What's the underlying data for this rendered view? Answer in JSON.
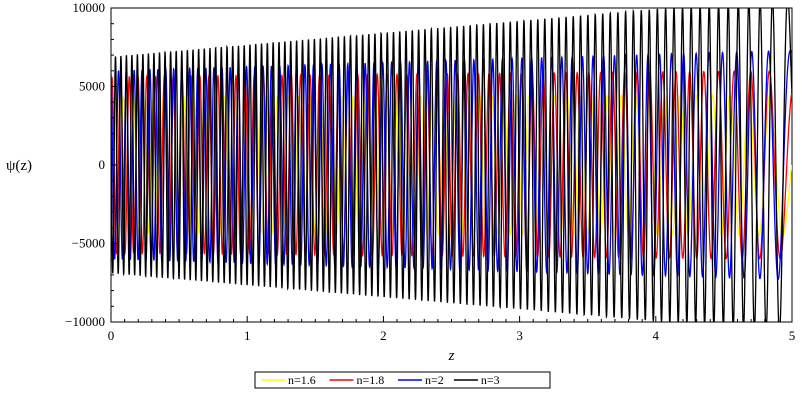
{
  "chart_data": {
    "type": "line",
    "ylabel": "ψ(z)",
    "xlabel": "z",
    "xlim": [
      0,
      5
    ],
    "ylim": [
      -10000,
      10000
    ],
    "x_ticks": [
      0,
      1,
      2,
      3,
      4,
      5
    ],
    "y_ticks": [
      -10000,
      -5000,
      0,
      5000,
      10000
    ],
    "y_tick_labels": [
      "−10000",
      "−5000",
      "0",
      "5000",
      "10000"
    ],
    "grid": false,
    "legend_position": "bottom-center",
    "legend_boxed": true,
    "series": [
      {
        "name": "n=1.6",
        "color": "#ffff00",
        "amp_start": 4300,
        "amp_end": 4500,
        "cycles": 55,
        "k_exponent": 1.25,
        "sample_points": [
          {
            "x": 3.0,
            "y": 4550
          },
          {
            "x": 3.93,
            "y": -4600
          },
          {
            "x": 4.23,
            "y": 4500
          },
          {
            "x": 4.85,
            "y": 4550
          },
          {
            "x": 5.0,
            "y": 200
          }
        ]
      },
      {
        "name": "n=1.8",
        "color": "#ff0000",
        "amp_start": 5600,
        "amp_end": 6000,
        "cycles": 63,
        "k_exponent": 1.25,
        "sample_points": [
          {
            "x": 3.17,
            "y": 5850
          },
          {
            "x": 3.88,
            "y": -5900
          },
          {
            "x": 4.17,
            "y": 5950
          },
          {
            "x": 4.77,
            "y": 6000
          },
          {
            "x": 5.0,
            "y": -3600
          }
        ]
      },
      {
        "name": "n=2",
        "color": "#0000ff",
        "amp_start": 6000,
        "amp_end": 7300,
        "cycles": 70,
        "k_exponent": 1.25,
        "sample_points": [
          {
            "x": 3.43,
            "y": 7000
          },
          {
            "x": 4.0,
            "y": -7000
          },
          {
            "x": 4.3,
            "y": 7100
          },
          {
            "x": 4.58,
            "y": -7200
          },
          {
            "x": 5.0,
            "y": 7300
          }
        ]
      },
      {
        "name": "n=3",
        "color": "#000000",
        "amp_start": 6900,
        "amp_end": 10700,
        "cycles": 100,
        "k_exponent": 1.25,
        "sample_points": [
          {
            "x": 3.83,
            "y": 10200
          },
          {
            "x": 4.17,
            "y": 10400
          },
          {
            "x": 4.5,
            "y": -10500
          },
          {
            "x": 4.88,
            "y": 10700
          },
          {
            "x": 5.0,
            "y": 6400
          }
        ]
      }
    ]
  }
}
